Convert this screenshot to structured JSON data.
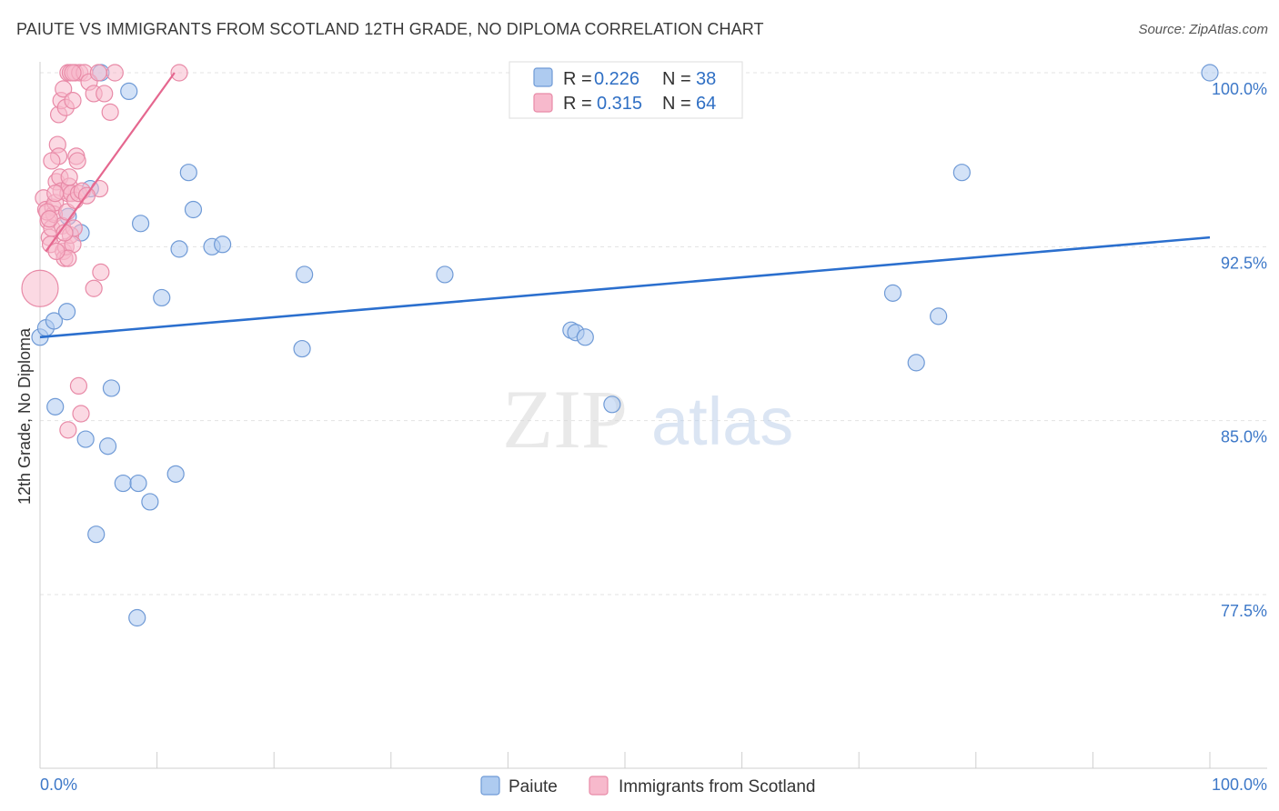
{
  "header": {
    "title": "PAIUTE VS IMMIGRANTS FROM SCOTLAND 12TH GRADE, NO DIPLOMA CORRELATION CHART",
    "source": "Source: ZipAtlas.com"
  },
  "watermark": {
    "zip": "ZIP",
    "atlas": "atlas"
  },
  "colors": {
    "paiute_fill": "#aecbf0",
    "paiute_stroke": "#6f9ad6",
    "paiute_line": "#2b6fce",
    "scotland_fill": "#f7b9cc",
    "scotland_stroke": "#e88aa7",
    "scotland_line": "#e5678f",
    "tick_label": "#3d78c8",
    "grid": "#e3e3e3"
  },
  "stats_legend": {
    "rows": [
      {
        "r_label": "R = ",
        "r_value": "0.226",
        "n_label": "N = ",
        "n_value": "38"
      },
      {
        "r_label": "R = ",
        "r_value": "0.315",
        "n_label": "N = ",
        "n_value": "64"
      }
    ]
  },
  "chart_data": {
    "type": "scatter",
    "title": "PAIUTE VS IMMIGRANTS FROM SCOTLAND 12TH GRADE, NO DIPLOMA CORRELATION CHART",
    "xlabel": "",
    "ylabel": "12th Grade, No Diploma",
    "xlim": [
      0,
      100
    ],
    "ylim": [
      70.0,
      100.7
    ],
    "x_tick_labels": [
      "0.0%",
      "100.0%"
    ],
    "y_ticks": [
      100.0,
      92.5,
      85.0,
      77.5
    ],
    "y_tick_labels": [
      "100.0%",
      "92.5%",
      "85.0%",
      "77.5%"
    ],
    "grid": true,
    "legend_position": "bottom-center",
    "series": [
      {
        "name": "Paiute",
        "color": "#aecbf0",
        "trend": {
          "x": [
            0,
            100
          ],
          "y": [
            88.6,
            92.9
          ]
        },
        "points": [
          [
            0.0,
            88.6
          ],
          [
            0.5,
            89.0
          ],
          [
            1.2,
            89.3
          ],
          [
            2.3,
            89.7
          ],
          [
            1.3,
            85.6
          ],
          [
            2.4,
            93.8
          ],
          [
            3.5,
            93.1
          ],
          [
            4.3,
            95.0
          ],
          [
            5.2,
            100.0
          ],
          [
            7.6,
            99.2
          ],
          [
            8.6,
            93.5
          ],
          [
            12.7,
            95.7
          ],
          [
            13.1,
            94.1
          ],
          [
            11.9,
            92.4
          ],
          [
            14.7,
            92.5
          ],
          [
            15.6,
            92.6
          ],
          [
            10.4,
            90.3
          ],
          [
            3.9,
            84.2
          ],
          [
            6.1,
            86.4
          ],
          [
            4.8,
            80.1
          ],
          [
            5.8,
            83.9
          ],
          [
            7.1,
            82.3
          ],
          [
            8.4,
            82.3
          ],
          [
            9.4,
            81.5
          ],
          [
            11.6,
            82.7
          ],
          [
            8.3,
            76.5
          ],
          [
            22.6,
            91.3
          ],
          [
            22.4,
            88.1
          ],
          [
            34.6,
            91.3
          ],
          [
            45.4,
            88.9
          ],
          [
            45.8,
            88.8
          ],
          [
            46.6,
            88.6
          ],
          [
            48.9,
            85.7
          ],
          [
            72.9,
            90.5
          ],
          [
            74.9,
            87.5
          ],
          [
            76.8,
            89.5
          ],
          [
            78.8,
            95.7
          ],
          [
            100.0,
            100.0
          ]
        ]
      },
      {
        "name": "Immigrants from Scotland",
        "color": "#f7b9cc",
        "trend": {
          "x": [
            0.5,
            11.5
          ],
          "y": [
            92.3,
            100.0
          ]
        },
        "points": [
          [
            0.0,
            90.7
          ],
          [
            0.3,
            94.6
          ],
          [
            0.5,
            94.1
          ],
          [
            0.7,
            93.6
          ],
          [
            0.8,
            92.9
          ],
          [
            0.9,
            92.6
          ],
          [
            1.0,
            93.3
          ],
          [
            1.1,
            94.2
          ],
          [
            1.2,
            93.9
          ],
          [
            1.3,
            94.4
          ],
          [
            1.4,
            95.3
          ],
          [
            1.5,
            96.9
          ],
          [
            1.6,
            96.4
          ],
          [
            1.7,
            95.5
          ],
          [
            1.8,
            94.9
          ],
          [
            1.9,
            93.4
          ],
          [
            2.0,
            92.3
          ],
          [
            2.1,
            92.0
          ],
          [
            2.2,
            92.5
          ],
          [
            2.3,
            94.0
          ],
          [
            2.4,
            94.8
          ],
          [
            2.5,
            95.1
          ],
          [
            2.6,
            93.0
          ],
          [
            2.7,
            94.8
          ],
          [
            2.8,
            92.6
          ],
          [
            2.9,
            93.3
          ],
          [
            3.0,
            94.5
          ],
          [
            3.1,
            96.4
          ],
          [
            3.2,
            96.2
          ],
          [
            3.3,
            94.8
          ],
          [
            1.6,
            98.2
          ],
          [
            1.8,
            98.8
          ],
          [
            2.0,
            99.3
          ],
          [
            2.2,
            98.5
          ],
          [
            2.4,
            100.0
          ],
          [
            2.6,
            100.0
          ],
          [
            2.8,
            98.8
          ],
          [
            3.0,
            100.0
          ],
          [
            3.4,
            100.0
          ],
          [
            3.8,
            100.0
          ],
          [
            4.2,
            99.6
          ],
          [
            4.6,
            99.1
          ],
          [
            5.0,
            100.0
          ],
          [
            5.5,
            99.1
          ],
          [
            6.0,
            98.3
          ],
          [
            6.4,
            100.0
          ],
          [
            11.9,
            100.0
          ],
          [
            5.1,
            95.0
          ],
          [
            5.2,
            91.4
          ],
          [
            4.6,
            90.7
          ],
          [
            3.3,
            86.5
          ],
          [
            3.5,
            85.3
          ],
          [
            2.4,
            84.6
          ],
          [
            0.6,
            94.0
          ],
          [
            1.0,
            96.2
          ],
          [
            1.3,
            94.8
          ],
          [
            2.1,
            93.1
          ],
          [
            2.4,
            92.0
          ],
          [
            2.8,
            100.0
          ],
          [
            3.6,
            94.9
          ],
          [
            0.8,
            93.7
          ],
          [
            1.4,
            92.3
          ],
          [
            2.5,
            95.5
          ],
          [
            4.0,
            94.7
          ]
        ]
      }
    ]
  }
}
